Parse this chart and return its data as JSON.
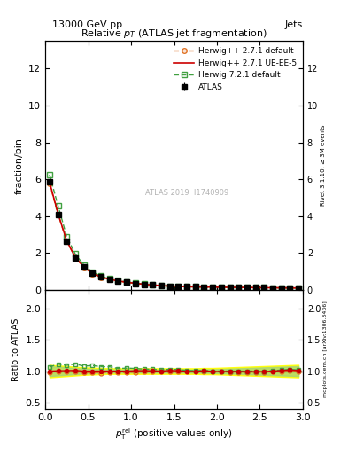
{
  "title": "Relative $p_T$ (ATLAS jet fragmentation)",
  "top_left_label": "13000 GeV pp",
  "top_right_label": "Jets",
  "ylabel_main": "fraction/bin",
  "ylabel_ratio": "Ratio to ATLAS",
  "right_label_main": "Rivet 3.1.10, ≥ 3M events",
  "right_label_ratio": "mcplots.cern.ch [arXiv:1306.3436]",
  "watermark": "ATLAS 2019  I1740909",
  "ylim_main": [
    0,
    13.5
  ],
  "ylim_ratio": [
    0.4,
    2.3
  ],
  "xlim": [
    0,
    3.0
  ],
  "yticks_main": [
    0,
    2,
    4,
    6,
    8,
    10,
    12
  ],
  "yticks_ratio": [
    0.5,
    1.0,
    1.5,
    2.0
  ],
  "x_data": [
    0.05,
    0.15,
    0.25,
    0.35,
    0.45,
    0.55,
    0.65,
    0.75,
    0.85,
    0.95,
    1.05,
    1.15,
    1.25,
    1.35,
    1.45,
    1.55,
    1.65,
    1.75,
    1.85,
    1.95,
    2.05,
    2.15,
    2.25,
    2.35,
    2.45,
    2.55,
    2.65,
    2.75,
    2.85,
    2.95
  ],
  "atlas_y": [
    5.85,
    4.1,
    2.65,
    1.75,
    1.25,
    0.9,
    0.7,
    0.58,
    0.49,
    0.42,
    0.36,
    0.31,
    0.27,
    0.24,
    0.21,
    0.19,
    0.18,
    0.17,
    0.16,
    0.155,
    0.15,
    0.145,
    0.14,
    0.135,
    0.13,
    0.125,
    0.12,
    0.115,
    0.11,
    0.108
  ],
  "atlas_err": [
    0.1,
    0.08,
    0.06,
    0.05,
    0.04,
    0.03,
    0.025,
    0.02,
    0.018,
    0.015,
    0.012,
    0.01,
    0.009,
    0.008,
    0.007,
    0.007,
    0.006,
    0.006,
    0.005,
    0.005,
    0.005,
    0.005,
    0.005,
    0.005,
    0.005,
    0.005,
    0.005,
    0.005,
    0.005,
    0.005
  ],
  "hwpp271_default_y": [
    5.75,
    4.1,
    2.65,
    1.75,
    1.22,
    0.88,
    0.68,
    0.57,
    0.48,
    0.41,
    0.355,
    0.308,
    0.268,
    0.238,
    0.21,
    0.19,
    0.178,
    0.168,
    0.16,
    0.153,
    0.148,
    0.143,
    0.138,
    0.133,
    0.128,
    0.123,
    0.119,
    0.115,
    0.111,
    0.108
  ],
  "hwpp271_ueee5_y": [
    5.85,
    4.12,
    2.67,
    1.77,
    1.25,
    0.9,
    0.7,
    0.58,
    0.49,
    0.42,
    0.362,
    0.312,
    0.271,
    0.24,
    0.212,
    0.191,
    0.179,
    0.169,
    0.161,
    0.154,
    0.149,
    0.144,
    0.139,
    0.134,
    0.129,
    0.124,
    0.12,
    0.116,
    0.112,
    0.109
  ],
  "hw721_default_y": [
    6.25,
    4.55,
    2.9,
    1.95,
    1.35,
    0.98,
    0.75,
    0.62,
    0.51,
    0.44,
    0.375,
    0.32,
    0.278,
    0.245,
    0.216,
    0.195,
    0.182,
    0.171,
    0.162,
    0.155,
    0.15,
    0.145,
    0.14,
    0.135,
    0.13,
    0.125,
    0.121,
    0.117,
    0.113,
    0.11
  ],
  "ratio_hwpp271_default": [
    0.982,
    1.0,
    1.0,
    1.0,
    0.976,
    0.978,
    0.971,
    0.983,
    0.98,
    0.976,
    0.986,
    0.994,
    0.993,
    0.992,
    1.0,
    1.0,
    0.989,
    0.988,
    1.0,
    0.987,
    0.987,
    0.986,
    0.986,
    0.985,
    0.985,
    0.984,
    0.992,
    1.0,
    1.009,
    1.0
  ],
  "ratio_hwpp271_ueee5": [
    1.0,
    1.005,
    1.008,
    1.011,
    1.0,
    1.0,
    1.0,
    1.0,
    1.0,
    1.0,
    1.006,
    1.006,
    1.004,
    1.0,
    1.009,
    1.005,
    0.994,
    0.994,
    1.006,
    0.994,
    0.993,
    0.993,
    0.993,
    0.993,
    0.992,
    0.992,
    1.0,
    1.009,
    1.018,
    1.009
  ],
  "ratio_hw721_default": [
    1.068,
    1.11,
    1.094,
    1.114,
    1.08,
    1.089,
    1.071,
    1.069,
    1.041,
    1.048,
    1.042,
    1.032,
    1.03,
    1.021,
    1.029,
    1.026,
    1.011,
    1.006,
    1.012,
    1.0,
    1.0,
    1.0,
    1.0,
    1.0,
    1.0,
    1.0,
    1.008,
    1.017,
    1.027,
    1.019
  ],
  "band_y_low": [
    0.92,
    0.93,
    0.94,
    0.95,
    0.96,
    0.965,
    0.97,
    0.975,
    0.975,
    0.975,
    0.975,
    0.975,
    0.975,
    0.975,
    0.975,
    0.975,
    0.975,
    0.975,
    0.97,
    0.97,
    0.965,
    0.96,
    0.955,
    0.95,
    0.945,
    0.94,
    0.935,
    0.93,
    0.925,
    0.92
  ],
  "band_y_high": [
    1.08,
    1.07,
    1.06,
    1.05,
    1.04,
    1.035,
    1.03,
    1.025,
    1.025,
    1.025,
    1.025,
    1.025,
    1.025,
    1.025,
    1.025,
    1.025,
    1.025,
    1.025,
    1.03,
    1.03,
    1.035,
    1.04,
    1.045,
    1.05,
    1.055,
    1.06,
    1.065,
    1.07,
    1.075,
    1.08
  ],
  "color_atlas": "#000000",
  "color_hwpp271_default": "#e07020",
  "color_hwpp271_ueee5": "#cc0000",
  "color_hw721_default": "#40a040",
  "color_band_yellow": "#ffff00",
  "color_band_green": "#a0d080"
}
